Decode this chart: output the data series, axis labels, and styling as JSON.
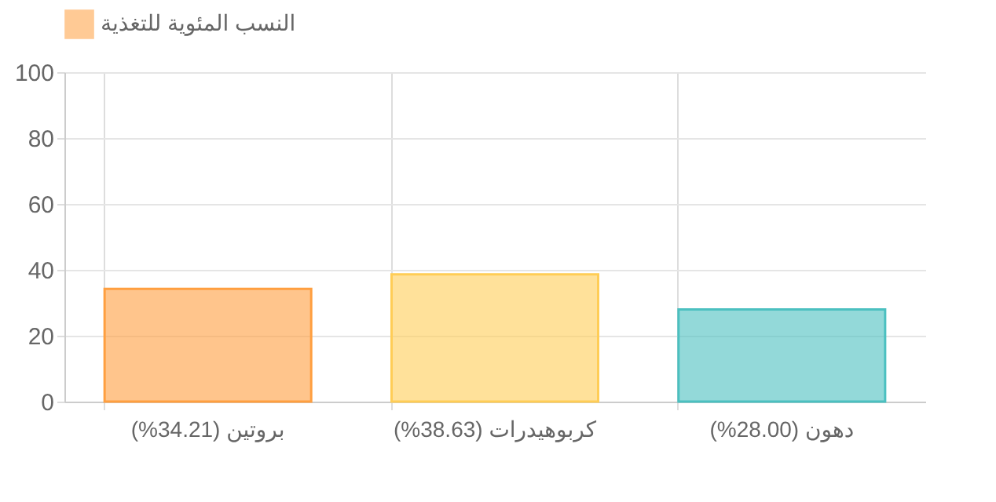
{
  "chart_data": {
    "type": "bar",
    "categories": [
      "بروتين (34.21%)",
      "كربوهيدرات (38.63%)",
      "دهون (28.00%)"
    ],
    "series": [
      {
        "name": "النسب المئوية للتغذية",
        "values": [
          34.21,
          38.63,
          28.0
        ],
        "colors": [
          "#ff9f40",
          "#ffcd56",
          "#4bc0c0"
        ]
      }
    ],
    "ylim": [
      0,
      100
    ],
    "yticks": [
      0,
      20,
      40,
      60,
      80,
      100
    ],
    "grid": true,
    "legend": "top"
  }
}
